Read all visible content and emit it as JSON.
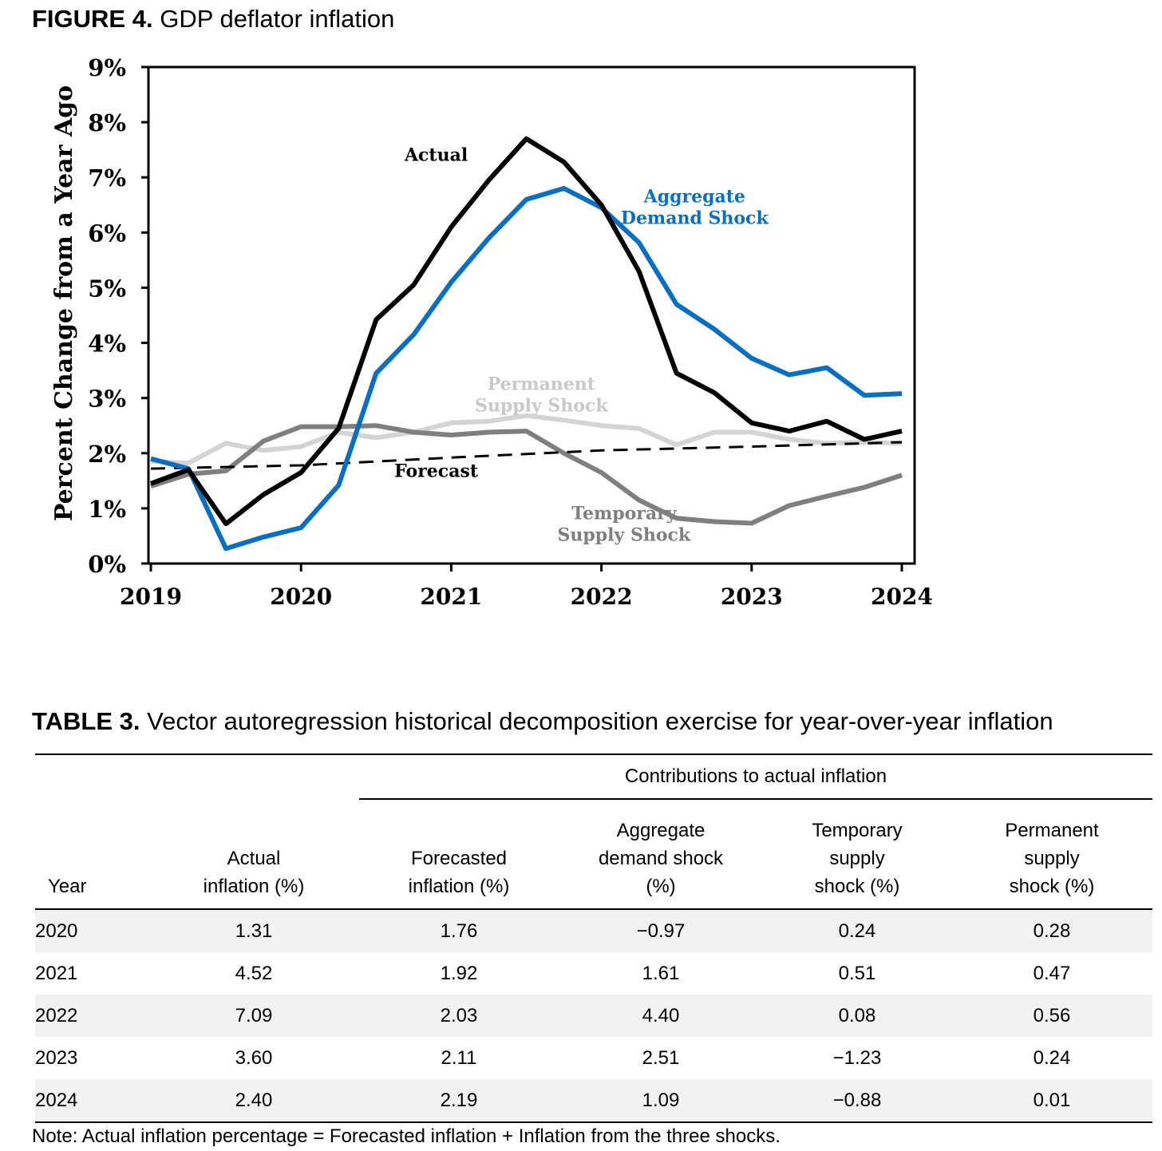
{
  "figure": {
    "label": "FIGURE 4.",
    "title": "GDP deflator inflation"
  },
  "chart_data": {
    "type": "line",
    "title": "GDP deflator inflation",
    "xlabel": "",
    "ylabel": "Percent Change from a Year Ago",
    "ylim": [
      0,
      9
    ],
    "xlim": [
      2019,
      2024.2
    ],
    "y_ticks": [
      0,
      1,
      2,
      3,
      4,
      5,
      6,
      7,
      8,
      9
    ],
    "y_tick_labels": [
      "0%",
      "1%",
      "2%",
      "3%",
      "4%",
      "5%",
      "6%",
      "7%",
      "8%",
      "9%"
    ],
    "x_ticks": [
      2019,
      2020,
      2021,
      2022,
      2023,
      2024
    ],
    "x_tick_labels": [
      "2019",
      "2020",
      "2021",
      "2022",
      "2023",
      "2024"
    ],
    "grid": false,
    "series": [
      {
        "name": "Actual",
        "color": "#000000",
        "style": "solid",
        "label_lines": [
          "Actual"
        ],
        "x": [
          2019.0,
          2019.25,
          2019.5,
          2019.75,
          2020.0,
          2020.25,
          2020.5,
          2020.75,
          2021.0,
          2021.25,
          2021.5,
          2021.75,
          2022.0,
          2022.25,
          2022.5,
          2022.75,
          2023.0,
          2023.25,
          2023.5,
          2023.75,
          2024.0
        ],
        "y": [
          1.45,
          1.7,
          0.72,
          1.25,
          1.65,
          2.45,
          4.42,
          5.05,
          6.1,
          6.95,
          7.7,
          7.28,
          6.5,
          5.3,
          3.45,
          3.1,
          2.55,
          2.4,
          2.58,
          2.25,
          2.4
        ]
      },
      {
        "name": "Aggregate Demand Shock",
        "color": "#0a6fc2",
        "style": "solid",
        "label_lines": [
          "Aggregate",
          "Demand Shock"
        ],
        "x": [
          2019.0,
          2019.25,
          2019.5,
          2019.75,
          2020.0,
          2020.25,
          2020.5,
          2020.75,
          2021.0,
          2021.25,
          2021.5,
          2021.75,
          2022.0,
          2022.25,
          2022.5,
          2022.75,
          2023.0,
          2023.25,
          2023.5,
          2023.75,
          2024.0
        ],
        "y": [
          1.9,
          1.72,
          0.27,
          0.48,
          0.65,
          1.42,
          3.45,
          4.15,
          5.1,
          5.9,
          6.6,
          6.8,
          6.45,
          5.82,
          4.7,
          4.25,
          3.72,
          3.42,
          3.55,
          3.05,
          3.08
        ]
      },
      {
        "name": "Permanent Supply Shock",
        "color": "#d4d4d4",
        "style": "solid",
        "label_lines": [
          "Permanent",
          "Supply Shock"
        ],
        "x": [
          2019.0,
          2019.25,
          2019.5,
          2019.75,
          2020.0,
          2020.25,
          2020.5,
          2020.75,
          2021.0,
          2021.25,
          2021.5,
          2021.75,
          2022.0,
          2022.25,
          2022.5,
          2022.75,
          2023.0,
          2023.25,
          2023.5,
          2023.75,
          2024.0
        ],
        "y": [
          1.85,
          1.82,
          2.18,
          2.05,
          2.12,
          2.38,
          2.28,
          2.38,
          2.55,
          2.58,
          2.68,
          2.6,
          2.5,
          2.45,
          2.15,
          2.38,
          2.38,
          2.25,
          2.18,
          2.2,
          2.18
        ]
      },
      {
        "name": "Temporary Supply Shock",
        "color": "#7f7f7f",
        "style": "solid",
        "label_lines": [
          "Temporary",
          "Supply Shock"
        ],
        "x": [
          2019.0,
          2019.25,
          2019.5,
          2019.75,
          2020.0,
          2020.25,
          2020.5,
          2020.75,
          2021.0,
          2021.25,
          2021.5,
          2021.75,
          2022.0,
          2022.25,
          2022.5,
          2022.75,
          2023.0,
          2023.25,
          2023.5,
          2023.75,
          2024.0
        ],
        "y": [
          1.4,
          1.62,
          1.68,
          2.22,
          2.48,
          2.48,
          2.5,
          2.38,
          2.33,
          2.38,
          2.4,
          2.0,
          1.65,
          1.15,
          0.82,
          0.76,
          0.73,
          1.05,
          1.22,
          1.38,
          1.6
        ]
      },
      {
        "name": "Forecast",
        "color": "#000000",
        "style": "dashed",
        "label_lines": [
          "Forecast"
        ],
        "x": [
          2019.0,
          2020.0,
          2021.0,
          2022.0,
          2023.0,
          2024.0
        ],
        "y": [
          1.72,
          1.78,
          1.92,
          2.05,
          2.12,
          2.2
        ]
      }
    ]
  },
  "table": {
    "label": "TABLE 3.",
    "title": "Vector autoregression historical decomposition exercise for year-over-year inflation",
    "group_header": "Contributions to actual inflation",
    "columns": [
      {
        "lines": [
          "Year"
        ]
      },
      {
        "lines": [
          "Actual",
          "inflation (%)"
        ]
      },
      {
        "lines": [
          "Forecasted",
          "inflation (%)"
        ]
      },
      {
        "lines": [
          "Aggregate",
          "demand shock",
          "(%)"
        ]
      },
      {
        "lines": [
          "Temporary",
          "supply",
          "shock (%)"
        ]
      },
      {
        "lines": [
          "Permanent",
          "supply",
          "shock (%)"
        ]
      }
    ],
    "rows": [
      [
        "2020",
        "1.31",
        "1.76",
        "−0.97",
        "0.24",
        "0.28"
      ],
      [
        "2021",
        "4.52",
        "1.92",
        "1.61",
        "0.51",
        "0.47"
      ],
      [
        "2022",
        "7.09",
        "2.03",
        "4.40",
        "0.08",
        "0.56"
      ],
      [
        "2023",
        "3.60",
        "2.11",
        "2.51",
        "−1.23",
        "0.24"
      ],
      [
        "2024",
        "2.40",
        "2.19",
        "1.09",
        "−0.88",
        "0.01"
      ]
    ],
    "note": "Note: Actual inflation percentage = Forecasted inflation + Inflation from the three shocks."
  }
}
